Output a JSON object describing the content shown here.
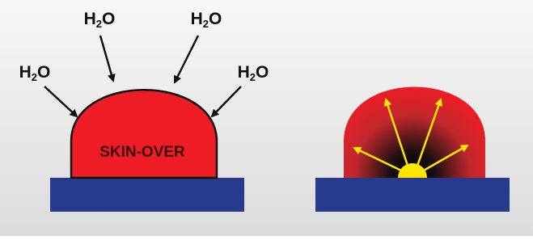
{
  "left": {
    "labels": [
      {
        "base": "H",
        "sub": "2",
        "tail": "O"
      },
      {
        "base": "H",
        "sub": "2",
        "tail": "O"
      },
      {
        "base": "H",
        "sub": "2",
        "tail": "O"
      },
      {
        "base": "H",
        "sub": "2",
        "tail": "O"
      }
    ],
    "center_label": "SKIN-OVER"
  }
}
